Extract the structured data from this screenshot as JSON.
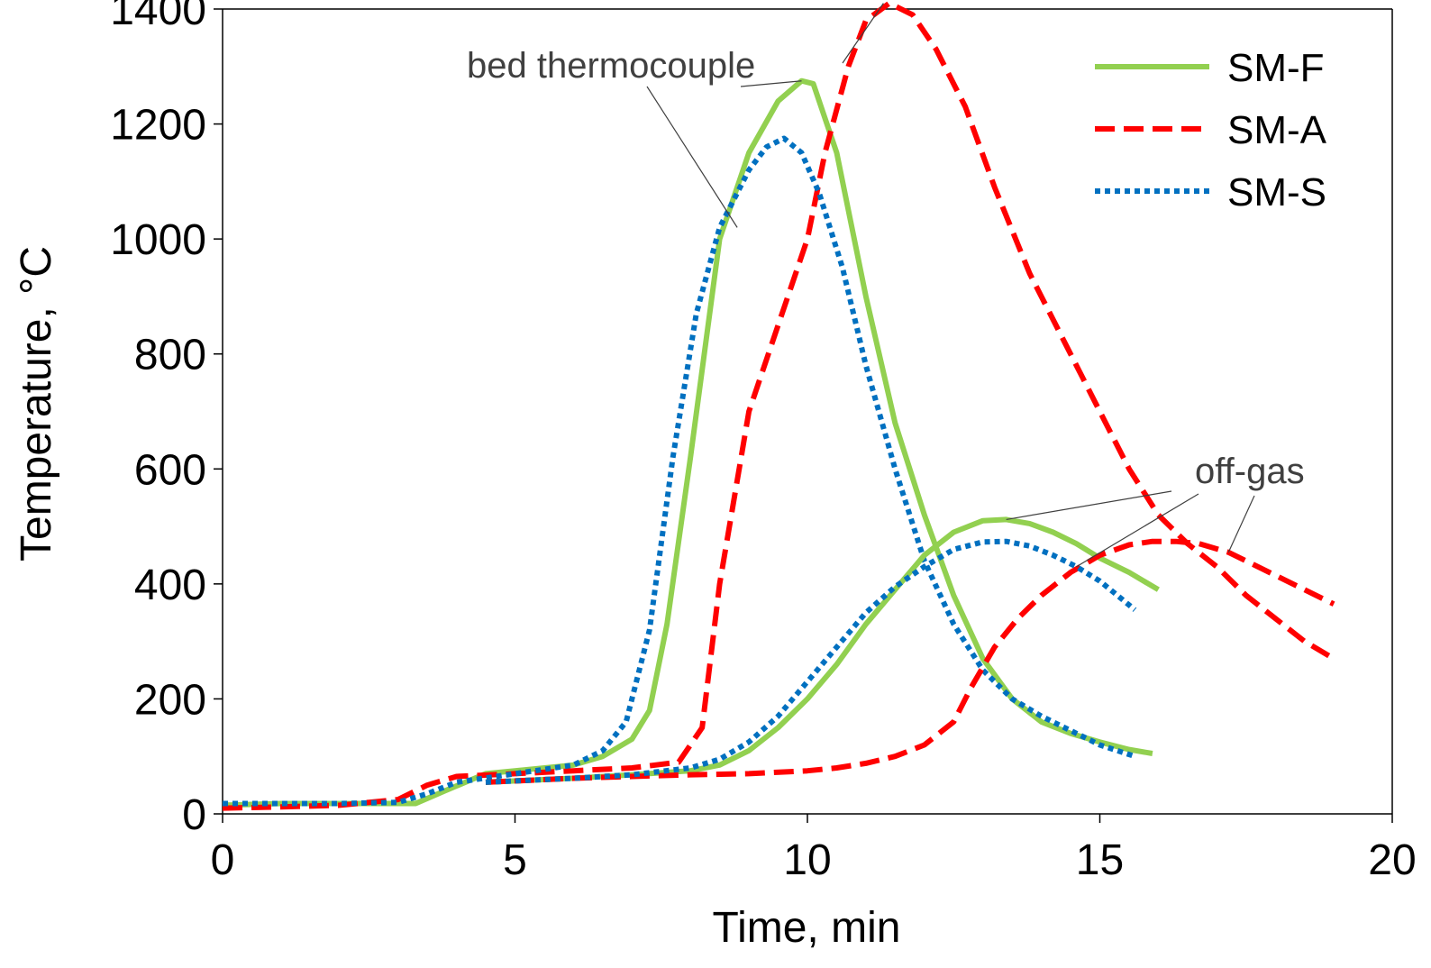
{
  "chart_data": {
    "type": "line",
    "title": "",
    "xlabel": "Time, min",
    "ylabel": "Temperature, °C",
    "xlim": [
      0,
      20
    ],
    "ylim": [
      0,
      1400
    ],
    "xticks": [
      0,
      5,
      10,
      15,
      20
    ],
    "yticks": [
      0,
      200,
      400,
      600,
      800,
      1000,
      1200,
      1400
    ],
    "grid": false,
    "legend_position": "top-right",
    "colors": {
      "SM-F": "#92d050",
      "SM-A": "#ff0000",
      "SM-S": "#0070c0"
    },
    "series": [
      {
        "name": "SM-F",
        "group": "bed thermocouple",
        "style": "solid",
        "x": [
          0,
          1,
          2,
          3,
          3.3,
          3.8,
          4.5,
          5,
          6,
          6.5,
          7,
          7.3,
          7.6,
          8,
          8.5,
          9,
          9.5,
          9.9,
          10.1,
          10.5,
          11,
          11.5,
          12,
          12.5,
          13,
          13.5,
          14,
          14.5,
          15,
          15.5,
          15.9
        ],
        "y": [
          15,
          18,
          18,
          18,
          18,
          40,
          70,
          75,
          85,
          100,
          130,
          180,
          330,
          620,
          1000,
          1150,
          1240,
          1275,
          1270,
          1150,
          900,
          680,
          520,
          380,
          270,
          200,
          160,
          140,
          125,
          112,
          105
        ]
      },
      {
        "name": "SM-A",
        "group": "bed thermocouple",
        "style": "dashed",
        "x": [
          0,
          1,
          2,
          3,
          3.5,
          4,
          5,
          6,
          7,
          7.8,
          8.2,
          8.5,
          9,
          9.5,
          10,
          10.3,
          10.7,
          11,
          11.4,
          11.8,
          12.2,
          12.7,
          13.2,
          13.8,
          14.5,
          15,
          15.5,
          16,
          16.5,
          17,
          17.5,
          18,
          18.5,
          19
        ],
        "y": [
          10,
          12,
          15,
          25,
          50,
          65,
          70,
          75,
          80,
          90,
          150,
          400,
          700,
          850,
          1000,
          1150,
          1300,
          1380,
          1410,
          1390,
          1330,
          1230,
          1090,
          940,
          800,
          700,
          600,
          520,
          470,
          430,
          380,
          340,
          300,
          270
        ]
      },
      {
        "name": "SM-S",
        "group": "bed thermocouple",
        "style": "dotted",
        "x": [
          0,
          1,
          2,
          3,
          3.5,
          4,
          5,
          6,
          6.5,
          6.9,
          7.3,
          7.7,
          8.1,
          8.5,
          9,
          9.3,
          9.6,
          9.9,
          10.2,
          10.6,
          11,
          11.5,
          12,
          12.5,
          13,
          13.5,
          14,
          14.5,
          15,
          15.6
        ],
        "y": [
          18,
          18,
          18,
          20,
          35,
          55,
          70,
          85,
          110,
          160,
          320,
          620,
          870,
          1020,
          1120,
          1160,
          1175,
          1150,
          1080,
          950,
          780,
          600,
          440,
          330,
          250,
          200,
          170,
          145,
          120,
          100
        ]
      },
      {
        "name": "SM-F",
        "group": "off-gas",
        "style": "solid",
        "x": [
          4.5,
          6,
          7,
          8,
          8.5,
          9,
          9.5,
          10,
          10.5,
          11,
          11.5,
          12,
          12.5,
          13,
          13.4,
          13.8,
          14.2,
          14.6,
          15,
          15.5,
          16
        ],
        "y": [
          55,
          62,
          68,
          75,
          85,
          110,
          150,
          200,
          260,
          330,
          390,
          450,
          490,
          510,
          512,
          505,
          490,
          470,
          445,
          420,
          390
        ]
      },
      {
        "name": "SM-A",
        "group": "off-gas",
        "style": "dashed",
        "x": [
          4.5,
          6,
          7,
          8,
          9,
          10,
          10.5,
          11,
          11.5,
          12,
          12.5,
          12.8,
          13.2,
          13.6,
          14,
          14.5,
          15,
          15.5,
          15.9,
          16.3,
          16.7,
          17.2,
          17.7,
          18.2,
          18.6,
          19
        ],
        "y": [
          55,
          62,
          65,
          68,
          70,
          75,
          80,
          88,
          100,
          120,
          160,
          220,
          290,
          340,
          380,
          420,
          450,
          468,
          474,
          474,
          470,
          455,
          430,
          405,
          385,
          365
        ]
      },
      {
        "name": "SM-S",
        "group": "off-gas",
        "style": "dotted",
        "x": [
          4.5,
          6,
          7,
          8,
          8.5,
          9,
          9.5,
          10,
          10.5,
          11,
          11.5,
          12,
          12.5,
          13,
          13.4,
          13.8,
          14.2,
          14.6,
          15,
          15.3,
          15.6
        ],
        "y": [
          55,
          62,
          68,
          80,
          95,
          125,
          170,
          230,
          290,
          350,
          395,
          430,
          460,
          473,
          474,
          466,
          450,
          430,
          405,
          380,
          355
        ]
      }
    ],
    "annotations": [
      {
        "text": "bed thermocouple"
      },
      {
        "text": "off-gas"
      }
    ]
  }
}
